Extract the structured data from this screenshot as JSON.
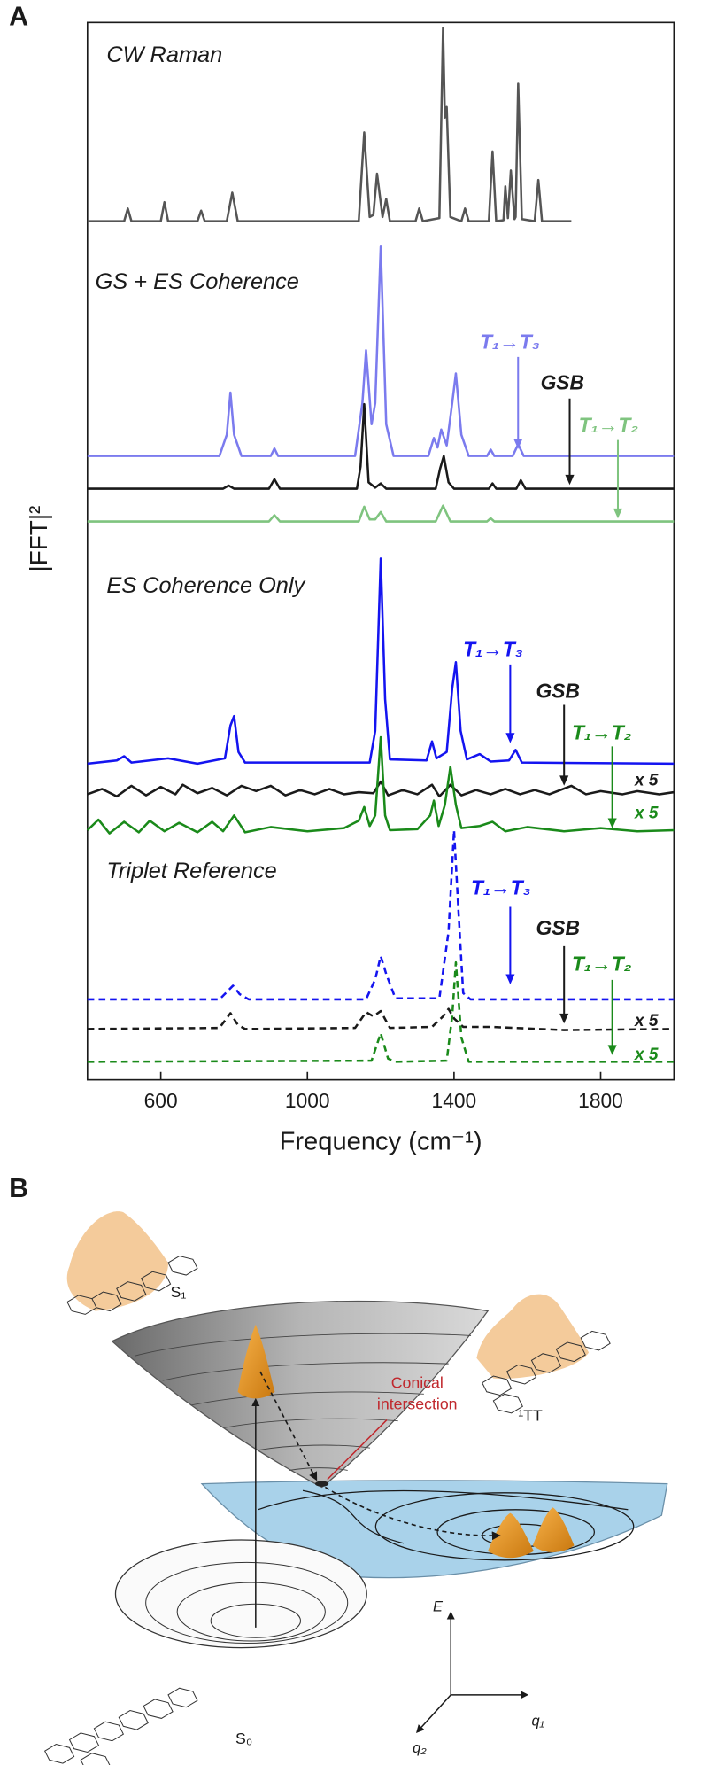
{
  "panel_labels": {
    "a": "A",
    "b": "B"
  },
  "chart_data": {
    "type": "line",
    "xlabel": "Frequency (cm⁻¹)",
    "ylabel": "|FFT|²",
    "xlim": [
      400,
      2000
    ],
    "ylim": [
      0,
      100
    ],
    "xticks": [
      600,
      1000,
      1400,
      1800
    ],
    "annotations": [
      {
        "text": "CW Raman",
        "color": "#1a1a1a"
      },
      {
        "text": "GS + ES Coherence",
        "color": "#1a1a1a"
      },
      {
        "text": "T₁→T₃",
        "color": "#7b7bee"
      },
      {
        "text": "GSB",
        "color": "#1a1a1a"
      },
      {
        "text": "T₁→T₂",
        "color": "#7fc47f"
      },
      {
        "text": "ES Coherence Only",
        "color": "#1a1a1a"
      },
      {
        "text": "T₁→T₃",
        "color": "#1414f0"
      },
      {
        "text": "GSB",
        "color": "#1a1a1a"
      },
      {
        "text": "T₁→T₂",
        "color": "#1a8a1a"
      },
      {
        "text": "x 5",
        "color": "#1a1a1a"
      },
      {
        "text": "x 5",
        "color": "#1a8a1a"
      },
      {
        "text": "Triplet Reference",
        "color": "#1a1a1a"
      },
      {
        "text": "T₁→T₃",
        "color": "#1414f0"
      },
      {
        "text": "GSB",
        "color": "#1a1a1a"
      },
      {
        "text": "T₁→T₂",
        "color": "#1a8a1a"
      },
      {
        "text": "x 5",
        "color": "#1a1a1a"
      },
      {
        "text": "x 5",
        "color": "#1a8a1a"
      }
    ],
    "series": [
      {
        "color": "#555555",
        "line_style": "solid",
        "x": [
          400,
          500,
          510,
          520,
          600,
          610,
          620,
          700,
          710,
          720,
          780,
          795,
          810,
          1140,
          1155,
          1170,
          1180,
          1190,
          1205,
          1215,
          1225,
          1295,
          1305,
          1315,
          1360,
          1370,
          1375,
          1380,
          1390,
          1420,
          1430,
          1440,
          1495,
          1505,
          1515,
          1535,
          1540,
          1547,
          1555,
          1565,
          1568,
          1575,
          1585,
          1620,
          1630,
          1640,
          1720
        ],
        "values": [
          81.2,
          81.2,
          82.4,
          81.2,
          81.2,
          83.0,
          81.2,
          81.2,
          82.2,
          81.2,
          81.2,
          83.9,
          81.2,
          81.2,
          89.6,
          81.6,
          81.8,
          85.7,
          81.6,
          83.3,
          81.2,
          81.2,
          82.4,
          81.2,
          81.5,
          99.5,
          91,
          92,
          81.6,
          81.2,
          82.4,
          81.2,
          81.2,
          87.8,
          81.2,
          81.3,
          84.5,
          81.5,
          86,
          81.4,
          81.6,
          94.2,
          81.4,
          81.2,
          85.1,
          81.2,
          81.2
        ]
      },
      {
        "color": "#7b7bee",
        "line_style": "solid",
        "x": [
          400,
          760,
          780,
          790,
          800,
          820,
          900,
          910,
          920,
          1130,
          1150,
          1160,
          1175,
          1185,
          1200,
          1215,
          1235,
          1330,
          1345,
          1355,
          1365,
          1380,
          1395,
          1405,
          1420,
          1440,
          1490,
          1500,
          1510,
          1560,
          1575,
          1590,
          2000
        ],
        "values": [
          59,
          59,
          61,
          65,
          61,
          59,
          59,
          59.7,
          59,
          59,
          64,
          69,
          62,
          64,
          78.8,
          62,
          59,
          59,
          60.7,
          59.8,
          61.5,
          60,
          64,
          66.8,
          61,
          59,
          59,
          59.6,
          59,
          59,
          60.1,
          59,
          59
        ]
      },
      {
        "color": "#1a1a1a",
        "line_style": "solid",
        "x": [
          400,
          770,
          785,
          800,
          895,
          910,
          925,
          1135,
          1145,
          1155,
          1167,
          1185,
          1200,
          1215,
          1350,
          1362,
          1372,
          1385,
          1400,
          1495,
          1505,
          1515,
          1570,
          1582,
          1595,
          2000
        ],
        "values": [
          55.9,
          55.9,
          56.2,
          55.9,
          55.9,
          56.8,
          55.9,
          55.9,
          58,
          63.9,
          56.5,
          56,
          56.4,
          55.9,
          55.9,
          57.8,
          59,
          56.5,
          55.9,
          55.9,
          56.4,
          55.9,
          55.9,
          56.7,
          55.9,
          55.9
        ]
      },
      {
        "color": "#7fc47f",
        "line_style": "solid",
        "x": [
          400,
          895,
          910,
          925,
          1140,
          1155,
          1170,
          1185,
          1200,
          1215,
          1350,
          1370,
          1390,
          1490,
          1500,
          1510,
          2000
        ],
        "values": [
          52.8,
          52.8,
          53.4,
          52.8,
          52.8,
          54.2,
          53,
          53,
          53.7,
          52.8,
          52.8,
          54.3,
          52.8,
          52.8,
          53.1,
          52.8,
          52.8
        ]
      },
      {
        "color": "#1414f0",
        "line_style": "solid",
        "x": [
          400,
          480,
          500,
          520,
          620,
          700,
          775,
          790,
          800,
          812,
          830,
          1170,
          1185,
          1200,
          1212,
          1225,
          1325,
          1340,
          1352,
          1380,
          1395,
          1405,
          1418,
          1435,
          1470,
          1500,
          1550,
          1568,
          1585,
          2000
        ],
        "values": [
          29.9,
          30.2,
          30.6,
          30,
          30.4,
          29.9,
          30.4,
          33.5,
          34.4,
          31,
          30,
          30,
          33,
          49.3,
          36,
          30.3,
          30.2,
          32,
          30.4,
          31,
          37,
          39.5,
          33,
          30.3,
          30.8,
          30.1,
          30.2,
          31.2,
          30,
          29.9
        ]
      },
      {
        "color": "#1a1a1a",
        "line_style": "solid",
        "x": [
          400,
          440,
          480,
          520,
          560,
          600,
          640,
          660,
          700,
          740,
          780,
          820,
          860,
          900,
          940,
          980,
          1020,
          1060,
          1100,
          1140,
          1180,
          1200,
          1220,
          1260,
          1300,
          1340,
          1360,
          1390,
          1420,
          1460,
          1500,
          1540,
          1580,
          1620,
          1660,
          1720,
          1760,
          1800,
          1860,
          1900,
          1960,
          2000
        ],
        "values": [
          27.0,
          27.5,
          26.8,
          27.8,
          26.9,
          27.7,
          27.0,
          27.9,
          27.1,
          27.6,
          26.9,
          27.8,
          27.3,
          27.8,
          26.9,
          27.4,
          27.0,
          27.5,
          27.0,
          27.2,
          27.1,
          28.2,
          26.9,
          27.4,
          27.0,
          27.9,
          26.8,
          27.9,
          26.9,
          27.4,
          27.0,
          27.5,
          27.0,
          27.4,
          27.0,
          27.8,
          27.0,
          27.3,
          27.0,
          27.3,
          27.0,
          27.2
        ]
      },
      {
        "color": "#1a8a1a",
        "line_style": "solid",
        "x": [
          400,
          430,
          460,
          500,
          540,
          570,
          610,
          650,
          700,
          740,
          770,
          800,
          830,
          900,
          1000,
          1100,
          1140,
          1155,
          1170,
          1185,
          1200,
          1212,
          1225,
          1300,
          1335,
          1345,
          1358,
          1375,
          1390,
          1405,
          1420,
          1470,
          1505,
          1540,
          1600,
          1700,
          1800,
          1900,
          2000
        ],
        "values": [
          23.6,
          24.6,
          23.3,
          24.4,
          23.4,
          24.5,
          23.5,
          24.3,
          23.4,
          24.4,
          23.5,
          25.0,
          23.4,
          23.9,
          23.5,
          23.8,
          24.5,
          25.8,
          24,
          25,
          32.4,
          25,
          23.6,
          23.7,
          25,
          26.4,
          24,
          26,
          29.6,
          26,
          23.8,
          24.0,
          24.4,
          23.5,
          23.9,
          23.5,
          23.8,
          23.5,
          23.6
        ]
      },
      {
        "color": "#1414f0",
        "line_style": "dashed",
        "x": [
          400,
          760,
          780,
          797,
          815,
          840,
          1160,
          1185,
          1200,
          1215,
          1240,
          1360,
          1385,
          1400,
          1412,
          1425,
          1445,
          2000
        ],
        "values": [
          7.6,
          7.6,
          8.3,
          8.9,
          8.1,
          7.6,
          7.6,
          9.5,
          11.7,
          10,
          7.7,
          7.7,
          14,
          23.6,
          16,
          8.2,
          7.6,
          7.6
        ]
      },
      {
        "color": "#1a1a1a",
        "line_style": "dashed",
        "x": [
          400,
          760,
          790,
          810,
          830,
          1130,
          1160,
          1180,
          1200,
          1225,
          1340,
          1370,
          1385,
          1400,
          1425,
          1500,
          1700,
          2000
        ],
        "values": [
          4.8,
          4.9,
          6.3,
          5.2,
          4.8,
          4.9,
          6.4,
          6.0,
          6.5,
          4.9,
          5,
          6,
          6.7,
          5.8,
          5,
          5,
          4.7,
          4.8
        ]
      },
      {
        "color": "#1a8a1a",
        "line_style": "dashed",
        "x": [
          400,
          1175,
          1200,
          1220,
          1240,
          1380,
          1395,
          1405,
          1420,
          1440,
          2000
        ],
        "values": [
          1.7,
          1.8,
          4.4,
          2,
          1.7,
          1.8,
          6,
          11.1,
          4,
          1.7,
          1.7
        ]
      }
    ]
  },
  "diagram": {
    "s1": "S₁",
    "conical": [
      "Conical",
      "intersection"
    ],
    "tt": "¹TT",
    "s0": "S₀",
    "axis_e": "E",
    "axis_q1": "q₁",
    "axis_q2": "q₂"
  }
}
